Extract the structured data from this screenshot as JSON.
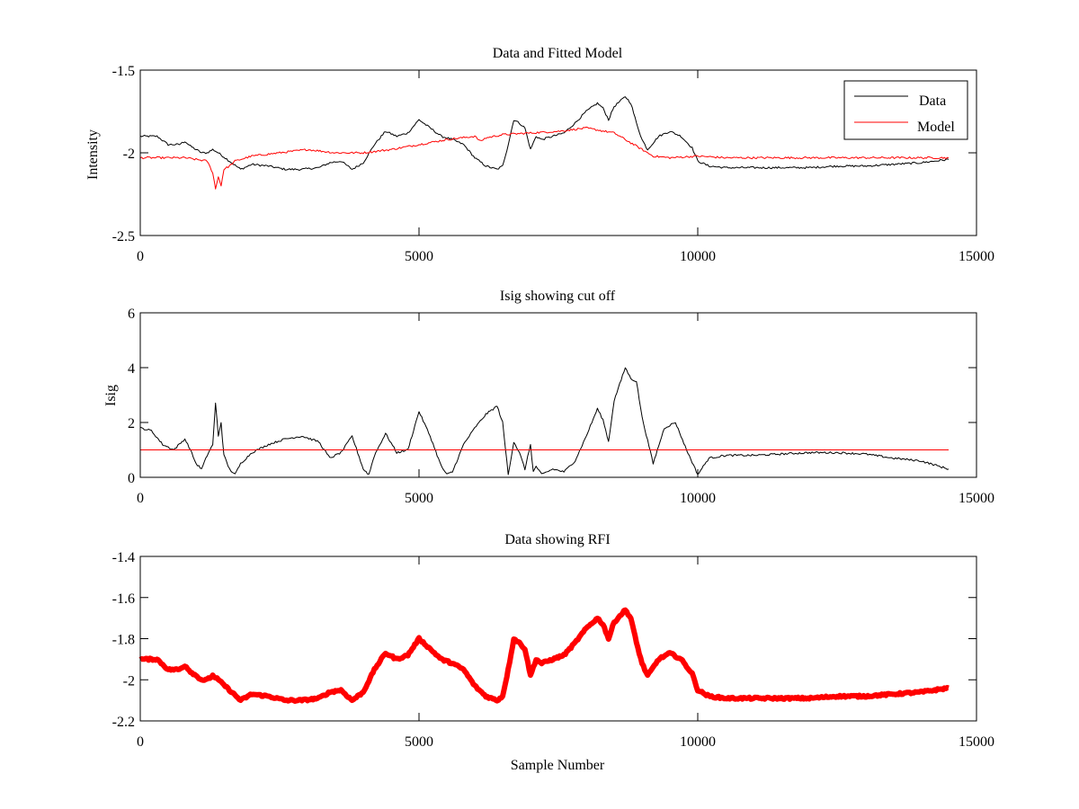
{
  "chart_data": [
    {
      "type": "line",
      "title": "Data and Fitted Model",
      "xlabel": "",
      "ylabel": "Intensity",
      "xlim": [
        0,
        15000
      ],
      "ylim": [
        -2.5,
        -1.5
      ],
      "x_ticks": [
        0,
        5000,
        10000,
        15000
      ],
      "y_ticks": [
        -2.5,
        -2,
        -1.5
      ],
      "x_tick_labels": [
        "0",
        "5000",
        "10000",
        "15000"
      ],
      "y_tick_labels": [
        "-2.5",
        "-2",
        "-1.5"
      ],
      "grid": false,
      "legend": "top-right",
      "series": [
        {
          "name": "Data",
          "color": "#000000",
          "x": [
            0,
            300,
            500,
            700,
            800,
            900,
            1000,
            1100,
            1200,
            1300,
            1400,
            1600,
            1800,
            2000,
            2300,
            2600,
            2900,
            3200,
            3400,
            3600,
            3800,
            4000,
            4200,
            4400,
            4600,
            4800,
            5000,
            5200,
            5400,
            5600,
            5800,
            6000,
            6200,
            6400,
            6500,
            6600,
            6700,
            6800,
            6900,
            7000,
            7100,
            7200,
            7400,
            7600,
            7800,
            8000,
            8200,
            8300,
            8400,
            8500,
            8700,
            8800,
            8900,
            9000,
            9100,
            9300,
            9500,
            9700,
            9900,
            10000,
            10200,
            10500,
            11000,
            11500,
            12000,
            12500,
            13000,
            13500,
            14000,
            14500
          ],
          "y": [
            -1.9,
            -1.9,
            -1.95,
            -1.95,
            -1.93,
            -1.96,
            -1.98,
            -2.0,
            -2.0,
            -1.98,
            -2.0,
            -2.05,
            -2.1,
            -2.07,
            -2.08,
            -2.1,
            -2.1,
            -2.09,
            -2.06,
            -2.05,
            -2.1,
            -2.06,
            -1.95,
            -1.87,
            -1.9,
            -1.88,
            -1.8,
            -1.85,
            -1.9,
            -1.92,
            -1.95,
            -2.03,
            -2.08,
            -2.1,
            -2.08,
            -1.95,
            -1.8,
            -1.82,
            -1.85,
            -1.98,
            -1.9,
            -1.92,
            -1.9,
            -1.88,
            -1.82,
            -1.75,
            -1.7,
            -1.73,
            -1.8,
            -1.72,
            -1.66,
            -1.7,
            -1.82,
            -1.92,
            -1.98,
            -1.9,
            -1.87,
            -1.9,
            -1.97,
            -2.05,
            -2.08,
            -2.09,
            -2.09,
            -2.09,
            -2.09,
            -2.08,
            -2.08,
            -2.07,
            -2.06,
            -2.04
          ]
        },
        {
          "name": "Model",
          "color": "#ff0000",
          "x": [
            0,
            500,
            800,
            1000,
            1200,
            1300,
            1350,
            1400,
            1450,
            1500,
            1600,
            1700,
            2000,
            2500,
            3000,
            3500,
            4000,
            4500,
            5000,
            5500,
            6000,
            6100,
            6200,
            6500,
            7000,
            7500,
            8000,
            8500,
            9000,
            9200,
            9500,
            10000,
            10500,
            11000,
            12000,
            13000,
            14000,
            14500
          ],
          "y": [
            -2.03,
            -2.03,
            -2.03,
            -2.04,
            -2.05,
            -2.12,
            -2.22,
            -2.14,
            -2.2,
            -2.1,
            -2.08,
            -2.05,
            -2.02,
            -2.0,
            -1.98,
            -2.0,
            -2.0,
            -1.98,
            -1.95,
            -1.92,
            -1.9,
            -1.93,
            -1.91,
            -1.89,
            -1.88,
            -1.87,
            -1.85,
            -1.88,
            -1.98,
            -2.02,
            -2.03,
            -2.02,
            -2.03,
            -2.03,
            -2.03,
            -2.03,
            -2.03,
            -2.03
          ]
        }
      ]
    },
    {
      "type": "line",
      "title": "Isig showing cut off",
      "xlabel": "",
      "ylabel": "Isig",
      "xlim": [
        0,
        15000
      ],
      "ylim": [
        0,
        6
      ],
      "x_ticks": [
        0,
        5000,
        10000,
        15000
      ],
      "y_ticks": [
        0,
        2,
        4,
        6
      ],
      "x_tick_labels": [
        "0",
        "5000",
        "10000",
        "15000"
      ],
      "y_tick_labels": [
        "0",
        "2",
        "4",
        "6"
      ],
      "grid": false,
      "series": [
        {
          "name": "",
          "color": "#000000",
          "x": [
            0,
            200,
            400,
            600,
            800,
            900,
            1000,
            1100,
            1200,
            1300,
            1350,
            1400,
            1450,
            1500,
            1600,
            1700,
            1800,
            2000,
            2300,
            2600,
            2900,
            3200,
            3400,
            3600,
            3800,
            4000,
            4100,
            4200,
            4400,
            4600,
            4800,
            5000,
            5200,
            5400,
            5500,
            5600,
            5800,
            6000,
            6200,
            6400,
            6500,
            6600,
            6700,
            6800,
            6900,
            7000,
            7050,
            7100,
            7200,
            7400,
            7600,
            7800,
            8000,
            8200,
            8300,
            8400,
            8500,
            8700,
            8800,
            8900,
            9000,
            9200,
            9400,
            9600,
            9800,
            10000,
            10200,
            10500,
            11000,
            11500,
            12000,
            12500,
            13000,
            13500,
            14000,
            14500
          ],
          "y": [
            1.8,
            1.7,
            1.2,
            1.0,
            1.4,
            1.0,
            0.5,
            0.3,
            0.8,
            1.2,
            2.7,
            1.5,
            2.0,
            0.8,
            0.3,
            0.1,
            0.5,
            0.9,
            1.2,
            1.4,
            1.5,
            1.3,
            0.7,
            0.9,
            1.5,
            0.3,
            0.1,
            0.8,
            1.6,
            0.9,
            1.0,
            2.4,
            1.5,
            0.4,
            0.1,
            0.2,
            1.2,
            1.8,
            2.3,
            2.6,
            2.0,
            0.1,
            1.3,
            0.9,
            0.3,
            1.2,
            0.2,
            0.4,
            0.1,
            0.3,
            0.2,
            0.6,
            1.5,
            2.5,
            2.1,
            1.3,
            2.8,
            4.0,
            3.6,
            3.5,
            2.2,
            0.5,
            1.8,
            2.0,
            1.0,
            0.1,
            0.7,
            0.8,
            0.8,
            0.85,
            0.9,
            0.9,
            0.85,
            0.7,
            0.6,
            0.3
          ]
        },
        {
          "name": "",
          "color": "#ff0000",
          "x": [
            0,
            14500
          ],
          "y": [
            1,
            1
          ]
        }
      ]
    },
    {
      "type": "line",
      "title": "Data showing RFI",
      "xlabel": "Sample Number",
      "ylabel": "",
      "xlim": [
        0,
        15000
      ],
      "ylim": [
        -2.2,
        -1.4
      ],
      "x_ticks": [
        0,
        5000,
        10000,
        15000
      ],
      "y_ticks": [
        -2.2,
        -2,
        -1.8,
        -1.6,
        -1.4
      ],
      "x_tick_labels": [
        "0",
        "5000",
        "10000",
        "15000"
      ],
      "y_tick_labels": [
        "-2.2",
        "-2",
        "-1.8",
        "-1.6",
        "-1.4"
      ],
      "grid": false,
      "series": [
        {
          "name": "",
          "color": "#ff0000",
          "x": [
            0,
            300,
            500,
            700,
            800,
            900,
            1000,
            1100,
            1200,
            1300,
            1400,
            1600,
            1800,
            2000,
            2300,
            2600,
            2900,
            3200,
            3400,
            3600,
            3800,
            4000,
            4200,
            4400,
            4600,
            4800,
            5000,
            5200,
            5400,
            5600,
            5800,
            6000,
            6200,
            6400,
            6500,
            6600,
            6700,
            6800,
            6900,
            7000,
            7100,
            7200,
            7400,
            7600,
            7800,
            8000,
            8200,
            8300,
            8400,
            8500,
            8700,
            8800,
            8900,
            9000,
            9100,
            9300,
            9500,
            9700,
            9900,
            10000,
            10200,
            10500,
            11000,
            11500,
            12000,
            12500,
            13000,
            13500,
            14000,
            14500
          ],
          "y": [
            -1.9,
            -1.9,
            -1.95,
            -1.95,
            -1.93,
            -1.96,
            -1.98,
            -2.0,
            -2.0,
            -1.98,
            -2.0,
            -2.05,
            -2.1,
            -2.07,
            -2.08,
            -2.1,
            -2.1,
            -2.09,
            -2.06,
            -2.05,
            -2.1,
            -2.06,
            -1.95,
            -1.87,
            -1.9,
            -1.88,
            -1.8,
            -1.85,
            -1.9,
            -1.92,
            -1.95,
            -2.03,
            -2.08,
            -2.1,
            -2.08,
            -1.95,
            -1.8,
            -1.82,
            -1.85,
            -1.98,
            -1.9,
            -1.92,
            -1.9,
            -1.88,
            -1.82,
            -1.75,
            -1.7,
            -1.73,
            -1.8,
            -1.72,
            -1.66,
            -1.7,
            -1.82,
            -1.92,
            -1.98,
            -1.9,
            -1.87,
            -1.9,
            -1.97,
            -2.05,
            -2.08,
            -2.09,
            -2.09,
            -2.09,
            -2.09,
            -2.08,
            -2.08,
            -2.07,
            -2.06,
            -2.04
          ]
        }
      ]
    }
  ]
}
